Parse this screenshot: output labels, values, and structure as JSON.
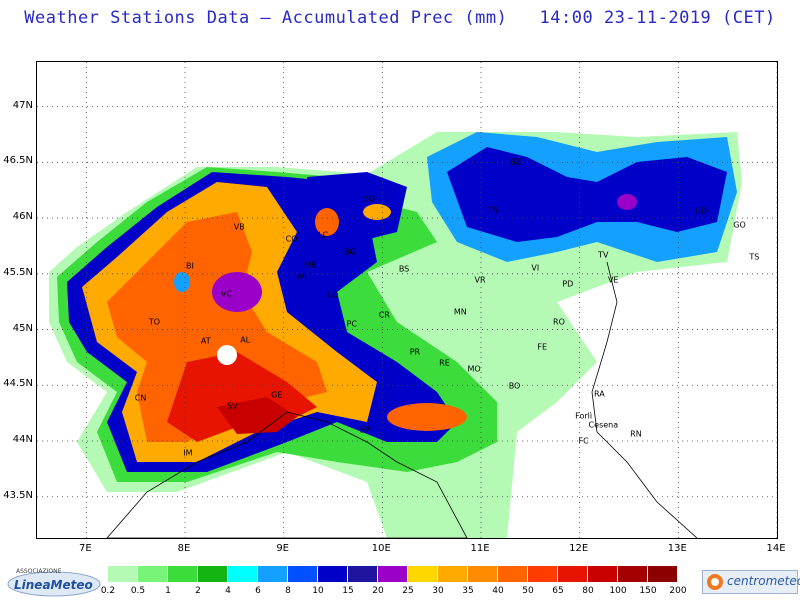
{
  "title": "Weather Stations Data — Accumulated Prec (mm)   14:00 23-11-2019 (CET)",
  "axes": {
    "lat_labels": [
      "47N",
      "46.5N",
      "46N",
      "45.5N",
      "45N",
      "44.5N",
      "44N",
      "43.5N"
    ],
    "lon_labels": [
      "7E",
      "8E",
      "9E",
      "10E",
      "11E",
      "12E",
      "13E",
      "14E"
    ]
  },
  "cities": [
    {
      "code": "BZ",
      "lon": 11.35,
      "lat": 46.5
    },
    {
      "code": "SO",
      "lon": 9.87,
      "lat": 46.17
    },
    {
      "code": "TN",
      "lon": 11.12,
      "lat": 46.07
    },
    {
      "code": "UD",
      "lon": 13.23,
      "lat": 46.06
    },
    {
      "code": "VB",
      "lon": 8.55,
      "lat": 45.92
    },
    {
      "code": "CO",
      "lon": 9.08,
      "lat": 45.81
    },
    {
      "code": "LC",
      "lon": 9.4,
      "lat": 45.85
    },
    {
      "code": "BG",
      "lon": 9.67,
      "lat": 45.7
    },
    {
      "code": "GO",
      "lon": 13.62,
      "lat": 45.94
    },
    {
      "code": "BI",
      "lon": 8.05,
      "lat": 45.57
    },
    {
      "code": "MB",
      "lon": 9.27,
      "lat": 45.58
    },
    {
      "code": "MI",
      "lon": 9.19,
      "lat": 45.47
    },
    {
      "code": "BS",
      "lon": 10.22,
      "lat": 45.54
    },
    {
      "code": "VR",
      "lon": 10.99,
      "lat": 45.44
    },
    {
      "code": "VI",
      "lon": 11.55,
      "lat": 45.55
    },
    {
      "code": "TV",
      "lon": 12.24,
      "lat": 45.67
    },
    {
      "code": "TS",
      "lon": 13.77,
      "lat": 45.65
    },
    {
      "code": "PD",
      "lon": 11.88,
      "lat": 45.41
    },
    {
      "code": "VE",
      "lon": 12.34,
      "lat": 45.44
    },
    {
      "code": "VC",
      "lon": 8.42,
      "lat": 45.32
    },
    {
      "code": "LO",
      "lon": 9.5,
      "lat": 45.31
    },
    {
      "code": "CR",
      "lon": 10.02,
      "lat": 45.13
    },
    {
      "code": "TO",
      "lon": 7.69,
      "lat": 45.07
    },
    {
      "code": "MN",
      "lon": 10.79,
      "lat": 45.16
    },
    {
      "code": "RO",
      "lon": 11.79,
      "lat": 45.07
    },
    {
      "code": "PC",
      "lon": 9.69,
      "lat": 45.05
    },
    {
      "code": "AT",
      "lon": 8.21,
      "lat": 44.9
    },
    {
      "code": "AL",
      "lon": 8.61,
      "lat": 44.91
    },
    {
      "code": "FE",
      "lon": 11.62,
      "lat": 44.84
    },
    {
      "code": "PR",
      "lon": 10.33,
      "lat": 44.8
    },
    {
      "code": "RE",
      "lon": 10.63,
      "lat": 44.7
    },
    {
      "code": "MO",
      "lon": 10.93,
      "lat": 44.65
    },
    {
      "code": "CN",
      "lon": 7.55,
      "lat": 44.39
    },
    {
      "code": "BO",
      "lon": 11.34,
      "lat": 44.49
    },
    {
      "code": "RA",
      "lon": 12.2,
      "lat": 44.42
    },
    {
      "code": "GE",
      "lon": 8.93,
      "lat": 44.41
    },
    {
      "code": "SV",
      "lon": 8.48,
      "lat": 44.31
    },
    {
      "code": "SP",
      "lon": 9.82,
      "lat": 44.1
    },
    {
      "code": "Forlì",
      "lon": 12.04,
      "lat": 44.22
    },
    {
      "code": "Cesena",
      "lon": 12.24,
      "lat": 44.14
    },
    {
      "code": "FC",
      "lon": 12.04,
      "lat": 44.0
    },
    {
      "code": "RN",
      "lon": 12.57,
      "lat": 44.06
    },
    {
      "code": "IM",
      "lon": 8.03,
      "lat": 43.89
    }
  ],
  "legend": {
    "thresholds": [
      "0.2",
      "0.5",
      "1",
      "2",
      "4",
      "6",
      "8",
      "10",
      "15",
      "20",
      "25",
      "30",
      "35",
      "40",
      "50",
      "65",
      "80",
      "100",
      "150",
      "200"
    ],
    "colors": [
      "#b4fab4",
      "#78f578",
      "#3cdc3c",
      "#14b414",
      "#00ffff",
      "#14a0ff",
      "#0050ff",
      "#0000c8",
      "#1e14a0",
      "#9b00c8",
      "#ffd700",
      "#ffaa00",
      "#ff8c00",
      "#ff6400",
      "#ff3c00",
      "#e61400",
      "#c80000",
      "#a50000",
      "#8c0000"
    ]
  },
  "logos": {
    "left": "LineaMeteo",
    "left_small": "ASSOCIAZIONE",
    "right": "centrometeo"
  }
}
